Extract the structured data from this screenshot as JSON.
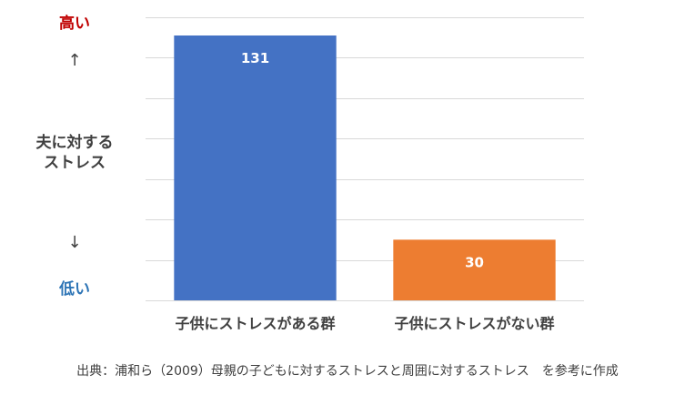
{
  "axis_text": {
    "high": "高い",
    "up_arrow": "↑",
    "ylabel_line1": "夫に対する",
    "ylabel_line2": "ストレス",
    "down_arrow": "↓",
    "low": "低い"
  },
  "source_note": "出典：浦和ら（2009）母親の子どもに対するストレスと周囲に対するストレス　を参考に作成",
  "colors": {
    "series_bar_1": "#4472c4",
    "series_bar_2": "#ed7d31",
    "high_label": "#c00000",
    "low_label": "#2e75b6",
    "gridline": "#d9d9d9",
    "text": "#404040"
  },
  "chart_data": {
    "type": "bar",
    "categories": [
      "子供にストレスがある群",
      "子供にストレスがない群"
    ],
    "values": [
      131,
      30
    ],
    "data_labels": [
      "131",
      "30"
    ],
    "ylabel": "夫に対するストレス",
    "ylim": [
      0,
      140
    ],
    "gridlines": true,
    "y_tick_labels_shown": false
  }
}
